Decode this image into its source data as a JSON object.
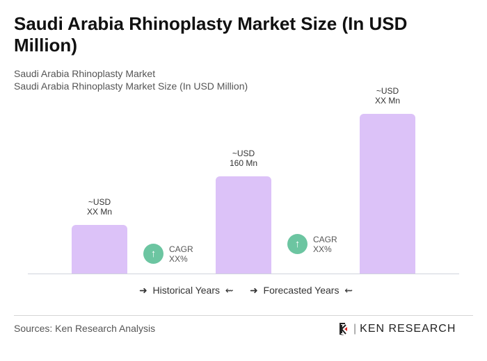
{
  "title": "Saudi Arabia Rhinoplasty Market Size (In USD Million)",
  "subtitle1": "Saudi Arabia Rhinoplasty Market",
  "subtitle2": "Saudi Arabia Rhinoplasty Market Size (In USD Million)",
  "chart_data": {
    "type": "bar",
    "values": [
      80,
      160,
      263
    ],
    "data_labels": [
      [
        "~USD",
        "XX Mn"
      ],
      [
        "~USD",
        "160 Mn"
      ],
      [
        "~USD",
        "XX Mn"
      ]
    ],
    "bar_color": "#dcc2f8",
    "grid": false,
    "cagr": [
      {
        "label": "CAGR",
        "value": "XX%"
      },
      {
        "label": "CAGR",
        "value": "XX%"
      }
    ],
    "cagr_color": "#6cc5a1",
    "legend": [
      "Historical Years",
      "Forecasted Years"
    ]
  },
  "footer": {
    "sources": "Sources: Ken Research Analysis",
    "logo": "KEN RESEARCH"
  }
}
